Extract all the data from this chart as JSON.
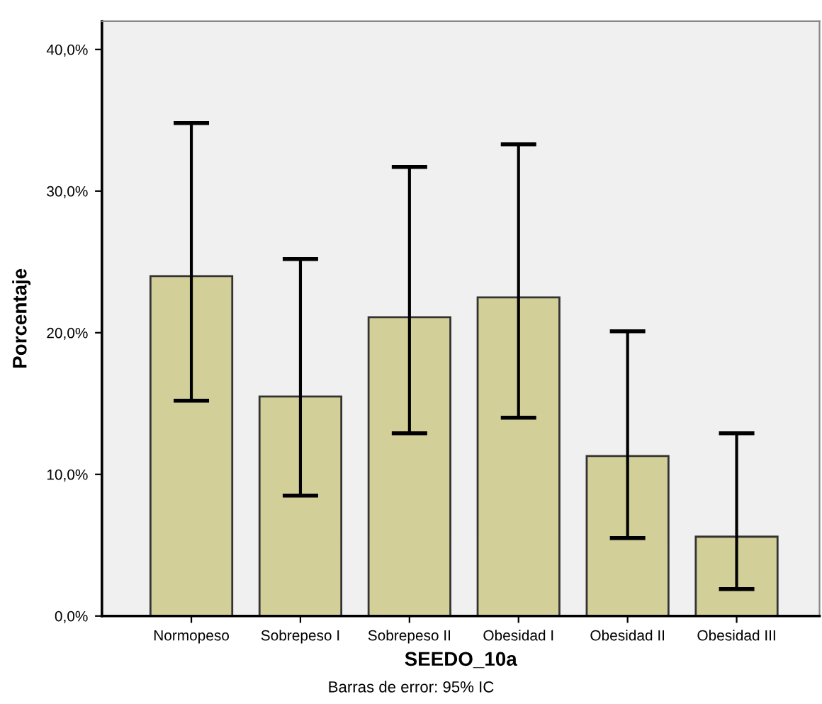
{
  "chart_data": {
    "type": "bar",
    "xlabel": "SEEDO_10a",
    "ylabel": "Porcentaje",
    "categories": [
      "Normopeso",
      "Sobrepeso I",
      "Sobrepeso II",
      "Obesidad I",
      "Obesidad II",
      "Obesidad III"
    ],
    "values": [
      24.0,
      15.5,
      21.1,
      22.5,
      11.3,
      5.6
    ],
    "errors": [
      [
        15.2,
        34.8
      ],
      [
        8.5,
        25.2
      ],
      [
        12.9,
        31.7
      ],
      [
        14.0,
        33.3
      ],
      [
        5.5,
        20.1
      ],
      [
        1.9,
        12.9
      ]
    ],
    "color": "#d3cf99",
    "ylim": [
      0,
      42
    ],
    "yticks": [
      {
        "value": 0,
        "label": "0,0%"
      },
      {
        "value": 10,
        "label": "10,0%"
      },
      {
        "value": 20,
        "label": "20,0%"
      },
      {
        "value": 30,
        "label": "30,0%"
      },
      {
        "value": 40,
        "label": "40,0%"
      }
    ],
    "grid": false,
    "annotations": [
      "Barras de error: 95% IC"
    ]
  }
}
